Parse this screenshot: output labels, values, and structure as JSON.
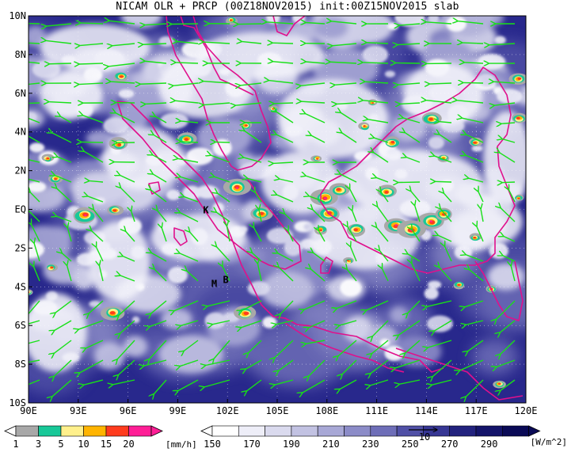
{
  "title": "NICAM OLR + PRCP (00Z18NOV2015) init:00Z15NOV2015 slab",
  "lat_labels": [
    "10N",
    "8N",
    "6N",
    "4N",
    "2N",
    "EQ",
    "2S",
    "4S",
    "6S",
    "8S",
    "10S"
  ],
  "lon_labels": [
    "90E",
    "93E",
    "96E",
    "99E",
    "102E",
    "105E",
    "108E",
    "111E",
    "114E",
    "117E",
    "120E"
  ],
  "place_labels": [
    {
      "text": "K",
      "lon": 100.7,
      "lat": -0.2
    },
    {
      "text": "M",
      "lon": 101.2,
      "lat": -4.0
    },
    {
      "text": "B",
      "lon": 101.9,
      "lat": -3.8
    }
  ],
  "prcp_colorbar": {
    "labels": [
      "1",
      "3",
      "5",
      "10",
      "15",
      "20"
    ],
    "units": "[mm/h]",
    "colors": [
      "#a8a8a8",
      "#18c898",
      "#fff08c",
      "#ffb400",
      "#ff3c1e",
      "#ff1e96"
    ]
  },
  "olr_colorbar": {
    "labels": [
      "150",
      "170",
      "190",
      "210",
      "230",
      "250",
      "270",
      "290"
    ],
    "units": "[W/m^2]",
    "colors": [
      "#ffffff",
      "#eeeef8",
      "#dadaee",
      "#c2c2e2",
      "#a8a8d6",
      "#8c8cc8",
      "#6e6eb8",
      "#5050a6",
      "#363694",
      "#22227e",
      "#14146a",
      "#0a0a56"
    ]
  },
  "ref_vector_label": "10",
  "colors": {
    "coast": "#e0108c",
    "wind": "#18e018",
    "ocean_base": "#28288c"
  }
}
